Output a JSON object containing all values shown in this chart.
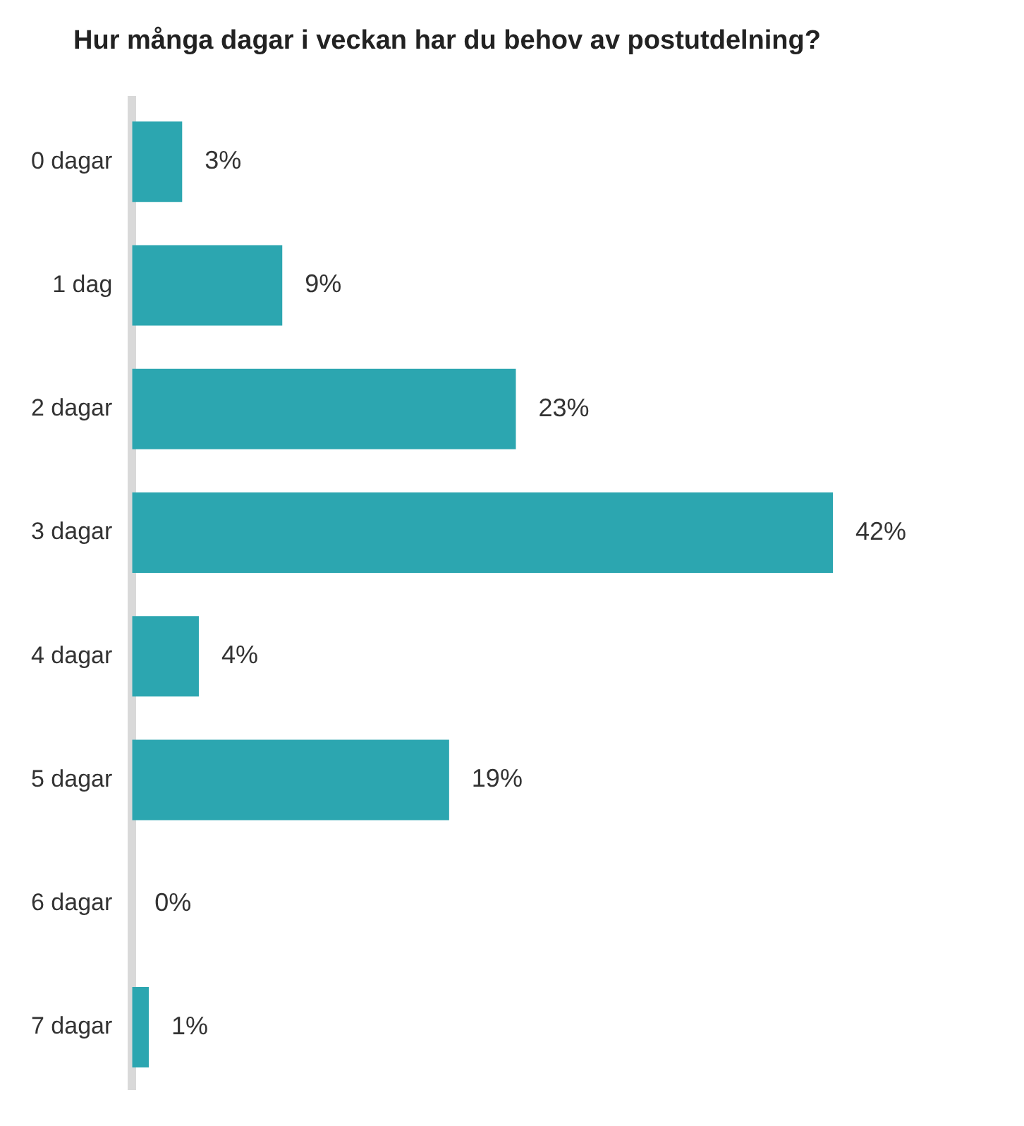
{
  "chart_data": {
    "type": "bar",
    "orientation": "horizontal",
    "title": "Hur många dagar i veckan har du behov av postutdelning?",
    "categories": [
      "0 dagar",
      "1 dag",
      "2 dagar",
      "3 dagar",
      "4 dagar",
      "5 dagar",
      "6 dagar",
      "7 dagar"
    ],
    "values": [
      3,
      9,
      23,
      42,
      4,
      19,
      0,
      1
    ],
    "value_labels": [
      "3%",
      "9%",
      "23%",
      "42%",
      "4%",
      "19%",
      "0%",
      "1%"
    ],
    "color": "#2ca6b0",
    "legend": false,
    "tick_labels": "y"
  }
}
